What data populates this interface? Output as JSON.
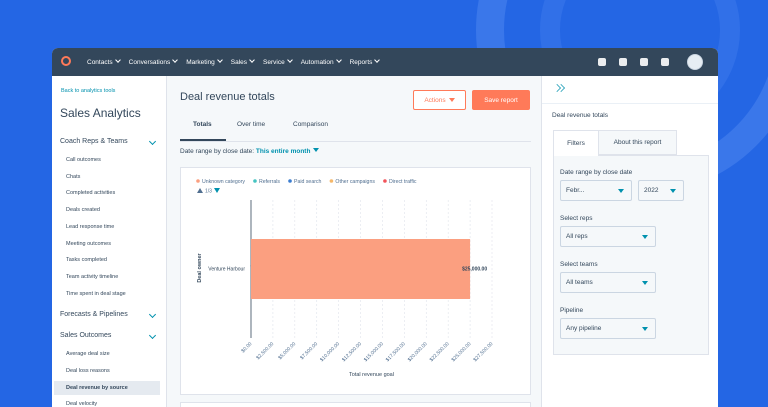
{
  "nav": {
    "items": [
      "Contacts",
      "Conversations",
      "Marketing",
      "Sales",
      "Service",
      "Automation",
      "Reports"
    ]
  },
  "sidebar": {
    "back_link": "Back to analytics tools",
    "title": "Sales Analytics",
    "sections": [
      {
        "label": "Coach Reps & Teams",
        "items": [
          "Call outcomes",
          "Chats",
          "Completed activities",
          "Deals created",
          "Lead response time",
          "Meeting outcomes",
          "Tasks completed",
          "Team activity timeline",
          "Time spent in deal stage"
        ]
      },
      {
        "label": "Forecasts & Pipelines"
      },
      {
        "label": "Sales Outcomes",
        "items": [
          "Average deal size",
          "Deal loss reasons",
          "Deal revenue by source",
          "Deal velocity"
        ]
      }
    ]
  },
  "main": {
    "title": "Deal revenue totals",
    "actions": "Actions",
    "save": "Save report",
    "tabs": [
      "Totals",
      "Over time",
      "Comparison"
    ],
    "date_range": {
      "label": "Date range by close date:",
      "value": "This entire month"
    }
  },
  "chart_data": {
    "type": "hbar",
    "categories": [
      "Venture Harbour"
    ],
    "series": [
      {
        "name": "Unknown category",
        "color": "#fb9f80",
        "values": [
          25000
        ],
        "value_labels": [
          "$25,000.00"
        ]
      },
      {
        "name": "Referrals",
        "color": "#45c4c1",
        "values": [
          null
        ]
      },
      {
        "name": "Paid search",
        "color": "#3b7dd0",
        "values": [
          null
        ]
      },
      {
        "name": "Other campaigns",
        "color": "#f5b86b",
        "values": [
          null
        ]
      },
      {
        "name": "Direct traffic",
        "color": "#f2545b",
        "values": [
          null
        ]
      }
    ],
    "pagination": "1/3",
    "xlabel": "Total revenue goal",
    "ylabel": "Deal owner",
    "xlim": [
      0,
      27500
    ],
    "xticks": [
      {
        "value": 0,
        "label": "$0.00"
      },
      {
        "value": 2500,
        "label": "$2,500.00"
      },
      {
        "value": 5000,
        "label": "$5,000.00"
      },
      {
        "value": 7500,
        "label": "$7,500.00"
      },
      {
        "value": 10000,
        "label": "$10,000.00"
      },
      {
        "value": 12500,
        "label": "$12,500.00"
      },
      {
        "value": 15000,
        "label": "$15,000.00"
      },
      {
        "value": 17500,
        "label": "$17,500.00"
      },
      {
        "value": 20000,
        "label": "$20,000.00"
      },
      {
        "value": 22500,
        "label": "$22,500.00"
      },
      {
        "value": 25000,
        "label": "$25,000.00"
      },
      {
        "value": 27500,
        "label": "$27,500.00"
      }
    ],
    "grid": true
  },
  "panel": {
    "title": "Deal revenue totals",
    "tabs": [
      "Filters",
      "About this report"
    ],
    "filters": [
      {
        "label": "Date range by close date",
        "controls": [
          "Febr...",
          "2022"
        ]
      },
      {
        "label": "Select reps",
        "controls": [
          "All reps"
        ]
      },
      {
        "label": "Select teams",
        "controls": [
          "All teams"
        ]
      },
      {
        "label": "Pipeline",
        "controls": [
          "Any pipeline"
        ]
      }
    ]
  }
}
